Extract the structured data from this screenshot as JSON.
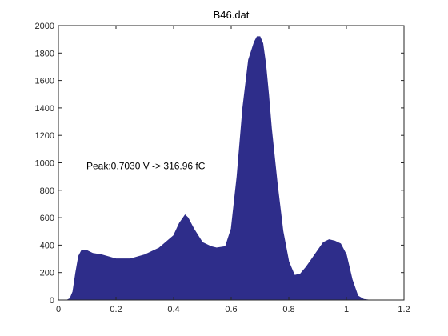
{
  "chart_data": {
    "type": "area",
    "title": "B46.dat",
    "xlabel": "",
    "ylabel": "",
    "xlim": [
      0,
      1.2
    ],
    "ylim": [
      0,
      2000
    ],
    "x_ticks": [
      0,
      0.2,
      0.4,
      0.6,
      0.8,
      1,
      1.2
    ],
    "x_tick_labels": [
      "0",
      "0.2",
      "0.4",
      "0.6",
      "0.8",
      "1",
      "1.2"
    ],
    "y_ticks": [
      0,
      200,
      400,
      600,
      800,
      1000,
      1200,
      1400,
      1600,
      1800,
      2000
    ],
    "y_tick_labels": [
      "0",
      "200",
      "400",
      "600",
      "800",
      "1000",
      "1200",
      "1400",
      "1600",
      "1800",
      "2000"
    ],
    "grid": false,
    "fill_color": "#2e2d8a",
    "series": [
      {
        "x": [
          0.03,
          0.04,
          0.05,
          0.06,
          0.07,
          0.08,
          0.1,
          0.12,
          0.15,
          0.2,
          0.25,
          0.3,
          0.35,
          0.4,
          0.42,
          0.44,
          0.45,
          0.47,
          0.5,
          0.53,
          0.55,
          0.58,
          0.6,
          0.62,
          0.64,
          0.66,
          0.68,
          0.69,
          0.7,
          0.71,
          0.72,
          0.73,
          0.74,
          0.76,
          0.78,
          0.8,
          0.82,
          0.84,
          0.86,
          0.88,
          0.9,
          0.92,
          0.94,
          0.96,
          0.98,
          1.0,
          1.02,
          1.04,
          1.06,
          1.08,
          1.1,
          1.15,
          1.2
        ],
        "y": [
          0,
          10,
          60,
          200,
          320,
          360,
          360,
          340,
          330,
          300,
          300,
          330,
          380,
          470,
          560,
          620,
          600,
          520,
          420,
          390,
          380,
          390,
          520,
          900,
          1400,
          1750,
          1880,
          1920,
          1920,
          1870,
          1720,
          1500,
          1250,
          850,
          500,
          280,
          180,
          190,
          240,
          300,
          360,
          420,
          440,
          430,
          410,
          330,
          150,
          30,
          5,
          0,
          0,
          0,
          0
        ]
      }
    ],
    "annotations": [
      {
        "text": "Peak:0.7030 V -> 316.96 fC",
        "x": 0.1,
        "y": 1000
      }
    ]
  }
}
